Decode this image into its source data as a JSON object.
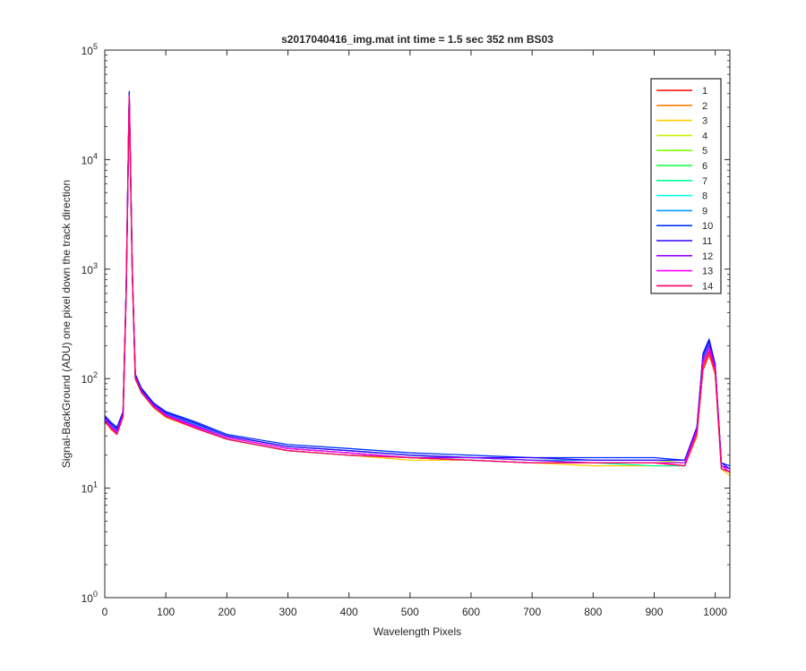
{
  "chart_data": {
    "type": "line",
    "title": "s2017040416_img.mat int time = 1.5 sec  352 nm BS03",
    "xlabel": "Wavelength Pixels",
    "ylabel": "Signal-BackGround (ADU) one pixel down the track direction",
    "xlim": [
      0,
      1024
    ],
    "ylim": [
      1,
      100000
    ],
    "yscale": "log",
    "grid": false,
    "legend_position": "top-right",
    "x_ticks": [
      {
        "value": 0,
        "label": "0"
      },
      {
        "value": 100,
        "label": "100"
      },
      {
        "value": 200,
        "label": "200"
      },
      {
        "value": 300,
        "label": "300"
      },
      {
        "value": 400,
        "label": "400"
      },
      {
        "value": 500,
        "label": "500"
      },
      {
        "value": 600,
        "label": "600"
      },
      {
        "value": 700,
        "label": "700"
      },
      {
        "value": 800,
        "label": "800"
      },
      {
        "value": 900,
        "label": "900"
      },
      {
        "value": 1000,
        "label": "1000"
      }
    ],
    "y_ticks": [
      {
        "value": 1,
        "base": "10",
        "exp": "0"
      },
      {
        "value": 10,
        "base": "10",
        "exp": "1"
      },
      {
        "value": 100,
        "base": "10",
        "exp": "2"
      },
      {
        "value": 1000,
        "base": "10",
        "exp": "3"
      },
      {
        "value": 10000,
        "base": "10",
        "exp": "4"
      },
      {
        "value": 100000,
        "base": "10",
        "exp": "5"
      }
    ],
    "x": [
      0,
      10,
      20,
      30,
      35,
      40,
      45,
      50,
      60,
      80,
      100,
      150,
      200,
      300,
      400,
      500,
      600,
      700,
      800,
      900,
      950,
      970,
      980,
      990,
      1000,
      1010,
      1024
    ],
    "series": [
      {
        "name": "1",
        "color": "#ff0000",
        "values": [
          40,
          35,
          32,
          45,
          600,
          36000,
          900,
          100,
          75,
          55,
          45,
          35,
          28,
          22,
          20,
          19,
          18,
          17,
          17,
          17,
          16,
          30,
          120,
          165,
          110,
          15,
          14
        ]
      },
      {
        "name": "2",
        "color": "#ff7f00",
        "values": [
          42,
          36,
          33,
          46,
          620,
          37000,
          950,
          102,
          76,
          56,
          46,
          36,
          29,
          23,
          21,
          19,
          18,
          17,
          17,
          17,
          17,
          32,
          125,
          170,
          112,
          15,
          14
        ]
      },
      {
        "name": "3",
        "color": "#ffcc00",
        "values": [
          41,
          34,
          31,
          44,
          610,
          36500,
          920,
          98,
          74,
          54,
          44,
          35,
          28,
          22,
          20,
          18,
          18,
          17,
          16,
          16,
          16,
          31,
          130,
          175,
          115,
          15,
          13
        ]
      },
      {
        "name": "4",
        "color": "#c8f000",
        "values": [
          43,
          37,
          33,
          47,
          630,
          38000,
          960,
          104,
          77,
          57,
          47,
          37,
          29,
          23,
          21,
          19,
          19,
          18,
          17,
          17,
          17,
          33,
          135,
          180,
          118,
          16,
          14
        ]
      },
      {
        "name": "5",
        "color": "#80ff00",
        "values": [
          44,
          38,
          34,
          48,
          640,
          38500,
          970,
          106,
          78,
          58,
          48,
          38,
          30,
          24,
          22,
          20,
          19,
          18,
          18,
          18,
          17,
          34,
          140,
          185,
          120,
          16,
          15
        ]
      },
      {
        "name": "6",
        "color": "#00ff40",
        "values": [
          42,
          36,
          32,
          46,
          625,
          37500,
          940,
          101,
          75,
          56,
          46,
          36,
          29,
          23,
          21,
          19,
          18,
          17,
          17,
          17,
          17,
          33,
          145,
          190,
          122,
          16,
          14
        ]
      },
      {
        "name": "7",
        "color": "#00ff99",
        "values": [
          41,
          35,
          31,
          45,
          615,
          37000,
          930,
          99,
          74,
          55,
          45,
          36,
          28,
          22,
          20,
          19,
          18,
          17,
          17,
          16,
          16,
          32,
          150,
          195,
          125,
          15,
          14
        ]
      },
      {
        "name": "8",
        "color": "#00ffee",
        "values": [
          43,
          37,
          33,
          47,
          635,
          38200,
          955,
          103,
          77,
          57,
          47,
          37,
          29,
          23,
          21,
          19,
          19,
          18,
          17,
          17,
          17,
          34,
          155,
          200,
          128,
          16,
          15
        ]
      },
      {
        "name": "9",
        "color": "#0099ff",
        "values": [
          44,
          38,
          34,
          48,
          645,
          39000,
          975,
          105,
          78,
          58,
          48,
          38,
          30,
          24,
          22,
          20,
          19,
          18,
          18,
          18,
          18,
          35,
          160,
          210,
          130,
          16,
          15
        ]
      },
      {
        "name": "10",
        "color": "#0033ff",
        "values": [
          46,
          40,
          36,
          50,
          680,
          42000,
          1000,
          110,
          82,
          60,
          50,
          40,
          31,
          25,
          23,
          21,
          20,
          19,
          19,
          19,
          18,
          36,
          170,
          230,
          135,
          17,
          16
        ]
      },
      {
        "name": "11",
        "color": "#3300ff",
        "values": [
          45,
          39,
          35,
          49,
          660,
          40500,
          985,
          108,
          80,
          59,
          49,
          39,
          30,
          24,
          22,
          20,
          19,
          19,
          18,
          18,
          18,
          36,
          165,
          220,
          132,
          17,
          15
        ]
      },
      {
        "name": "12",
        "color": "#9900ff",
        "values": [
          43,
          37,
          33,
          47,
          640,
          38800,
          960,
          104,
          77,
          57,
          47,
          37,
          29,
          23,
          21,
          19,
          19,
          18,
          17,
          17,
          17,
          34,
          150,
          200,
          126,
          16,
          15
        ]
      },
      {
        "name": "13",
        "color": "#ff00ff",
        "values": [
          42,
          36,
          32,
          46,
          625,
          37800,
          945,
          102,
          76,
          56,
          46,
          36,
          29,
          23,
          21,
          19,
          18,
          17,
          17,
          17,
          17,
          33,
          140,
          185,
          120,
          16,
          14
        ]
      },
      {
        "name": "14",
        "color": "#ff0066",
        "values": [
          41,
          35,
          31,
          45,
          610,
          36800,
          925,
          100,
          75,
          55,
          45,
          35,
          28,
          22,
          20,
          19,
          18,
          17,
          17,
          17,
          16,
          32,
          130,
          175,
          116,
          15,
          14
        ]
      }
    ]
  }
}
